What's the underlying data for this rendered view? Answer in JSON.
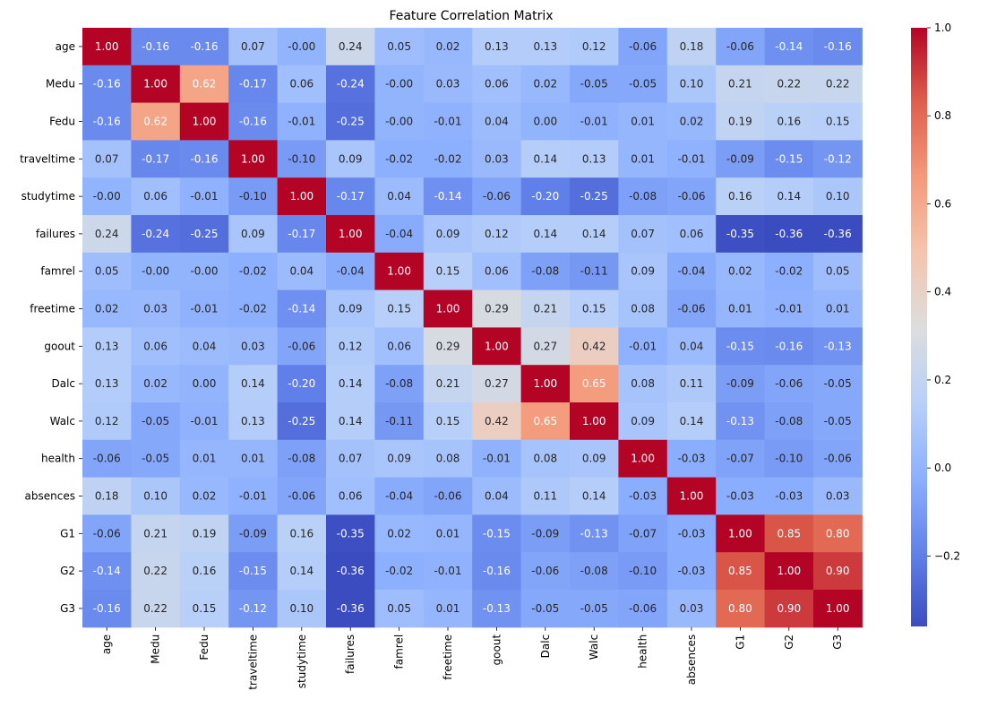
{
  "chart_data": {
    "type": "heatmap",
    "title": "Feature Correlation Matrix",
    "xlabel": "",
    "ylabel": "",
    "x_labels": [
      "age",
      "Medu",
      "Fedu",
      "traveltime",
      "studytime",
      "failures",
      "famrel",
      "freetime",
      "goout",
      "Dalc",
      "Walc",
      "health",
      "absences",
      "G1",
      "G2",
      "G3"
    ],
    "y_labels": [
      "age",
      "Medu",
      "Fedu",
      "traveltime",
      "studytime",
      "failures",
      "famrel",
      "freetime",
      "goout",
      "Dalc",
      "Walc",
      "health",
      "absences",
      "G1",
      "G2",
      "G3"
    ],
    "matrix": [
      [
        1.0,
        -0.16,
        -0.16,
        0.07,
        -0.0,
        0.24,
        0.05,
        0.02,
        0.13,
        0.13,
        0.12,
        -0.06,
        0.18,
        -0.06,
        -0.14,
        -0.16
      ],
      [
        -0.16,
        1.0,
        0.62,
        -0.17,
        0.06,
        -0.24,
        -0.0,
        0.03,
        0.06,
        0.02,
        -0.05,
        -0.05,
        0.1,
        0.21,
        0.22,
        0.22
      ],
      [
        -0.16,
        0.62,
        1.0,
        -0.16,
        -0.01,
        -0.25,
        -0.0,
        -0.01,
        0.04,
        0.0,
        -0.01,
        0.01,
        0.02,
        0.19,
        0.16,
        0.15
      ],
      [
        0.07,
        -0.17,
        -0.16,
        1.0,
        -0.1,
        0.09,
        -0.02,
        -0.02,
        0.03,
        0.14,
        0.13,
        0.01,
        -0.01,
        -0.09,
        -0.15,
        -0.12
      ],
      [
        -0.0,
        0.06,
        -0.01,
        -0.1,
        1.0,
        -0.17,
        0.04,
        -0.14,
        -0.06,
        -0.2,
        -0.25,
        -0.08,
        -0.06,
        0.16,
        0.14,
        0.1
      ],
      [
        0.24,
        -0.24,
        -0.25,
        0.09,
        -0.17,
        1.0,
        -0.04,
        0.09,
        0.12,
        0.14,
        0.14,
        0.07,
        0.06,
        -0.35,
        -0.36,
        -0.36
      ],
      [
        0.05,
        -0.0,
        -0.0,
        -0.02,
        0.04,
        -0.04,
        1.0,
        0.15,
        0.06,
        -0.08,
        -0.11,
        0.09,
        -0.04,
        0.02,
        -0.02,
        0.05
      ],
      [
        0.02,
        0.03,
        -0.01,
        -0.02,
        -0.14,
        0.09,
        0.15,
        1.0,
        0.29,
        0.21,
        0.15,
        0.08,
        -0.06,
        0.01,
        -0.01,
        0.01
      ],
      [
        0.13,
        0.06,
        0.04,
        0.03,
        -0.06,
        0.12,
        0.06,
        0.29,
        1.0,
        0.27,
        0.42,
        -0.01,
        0.04,
        -0.15,
        -0.16,
        -0.13
      ],
      [
        0.13,
        0.02,
        0.0,
        0.14,
        -0.2,
        0.14,
        -0.08,
        0.21,
        0.27,
        1.0,
        0.65,
        0.08,
        0.11,
        -0.09,
        -0.06,
        -0.05
      ],
      [
        0.12,
        -0.05,
        -0.01,
        0.13,
        -0.25,
        0.14,
        -0.11,
        0.15,
        0.42,
        0.65,
        1.0,
        0.09,
        0.14,
        -0.13,
        -0.08,
        -0.05
      ],
      [
        -0.06,
        -0.05,
        0.01,
        0.01,
        -0.08,
        0.07,
        0.09,
        0.08,
        -0.01,
        0.08,
        0.09,
        1.0,
        -0.03,
        -0.07,
        -0.1,
        -0.06
      ],
      [
        0.18,
        0.1,
        0.02,
        -0.01,
        -0.06,
        0.06,
        -0.04,
        -0.06,
        0.04,
        0.11,
        0.14,
        -0.03,
        1.0,
        -0.03,
        -0.03,
        0.03
      ],
      [
        -0.06,
        0.21,
        0.19,
        -0.09,
        0.16,
        -0.35,
        0.02,
        0.01,
        -0.15,
        -0.09,
        -0.13,
        -0.07,
        -0.03,
        1.0,
        0.85,
        0.8
      ],
      [
        -0.14,
        0.22,
        0.16,
        -0.15,
        0.14,
        -0.36,
        -0.02,
        -0.01,
        -0.16,
        -0.06,
        -0.08,
        -0.1,
        -0.03,
        0.85,
        1.0,
        0.9
      ],
      [
        -0.16,
        0.22,
        0.15,
        -0.12,
        0.1,
        -0.36,
        0.05,
        0.01,
        -0.13,
        -0.05,
        -0.05,
        -0.06,
        0.03,
        0.8,
        0.9,
        1.0
      ]
    ],
    "value_format": "0.00",
    "colormap": "coolwarm",
    "vmin": -0.36,
    "vmax": 1.0,
    "colorbar_ticks": [
      -0.2,
      0.0,
      0.2,
      0.4,
      0.6,
      0.8,
      1.0
    ],
    "colorbar_tick_labels": [
      "−0.2",
      "0.0",
      "0.2",
      "0.4",
      "0.6",
      "0.8",
      "1.0"
    ],
    "grid": false,
    "colors": {
      "low": "#3b4cc0",
      "mid": "#dddddd",
      "high": "#b40426",
      "text_dark": "#262626",
      "text_light": "#ffffff"
    }
  }
}
